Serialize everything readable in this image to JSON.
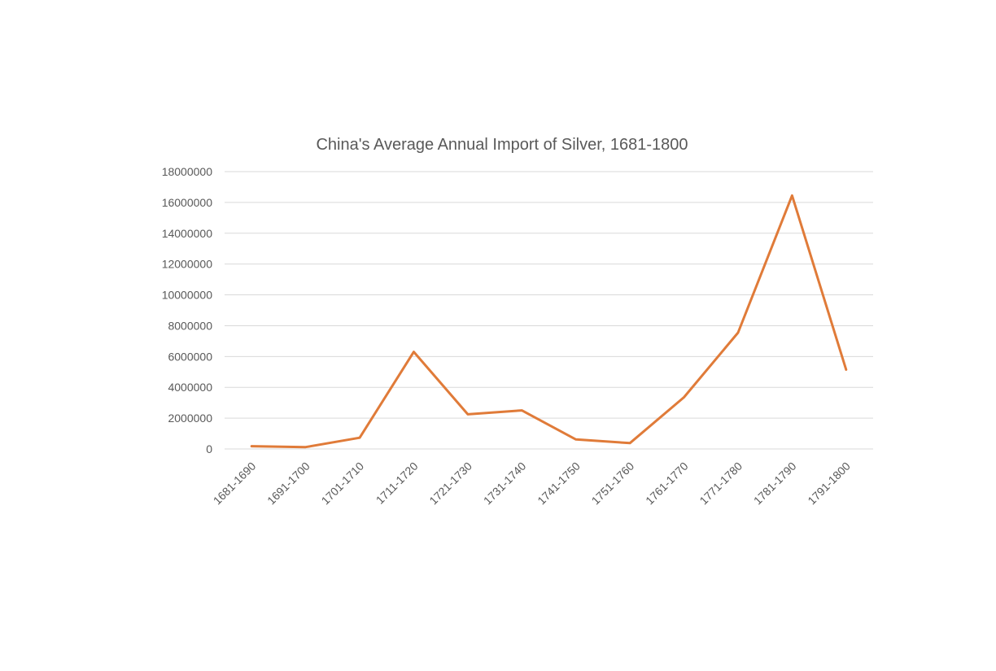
{
  "chart_data": {
    "type": "line",
    "title": "China's Average Annual Import of Silver, 1681-1800",
    "xlabel": "",
    "ylabel": "",
    "categories": [
      "1681-1690",
      "1691-1700",
      "1701-1710",
      "1711-1720",
      "1721-1730",
      "1731-1740",
      "1741-1750",
      "1751-1760",
      "1761-1770",
      "1771-1780",
      "1781-1790",
      "1791-1800"
    ],
    "y_ticks": [
      "0",
      "2000000",
      "4000000",
      "6000000",
      "8000000",
      "10000000",
      "12000000",
      "14000000",
      "16000000",
      "18000000"
    ],
    "ylim": [
      0,
      18000000
    ],
    "grid": true,
    "legend": "none",
    "series": [
      {
        "color": "#e07b39",
        "values": [
          180000,
          120000,
          730000,
          6300000,
          2250000,
          2500000,
          620000,
          380000,
          3350000,
          7550000,
          16450000,
          5150000
        ]
      }
    ]
  }
}
